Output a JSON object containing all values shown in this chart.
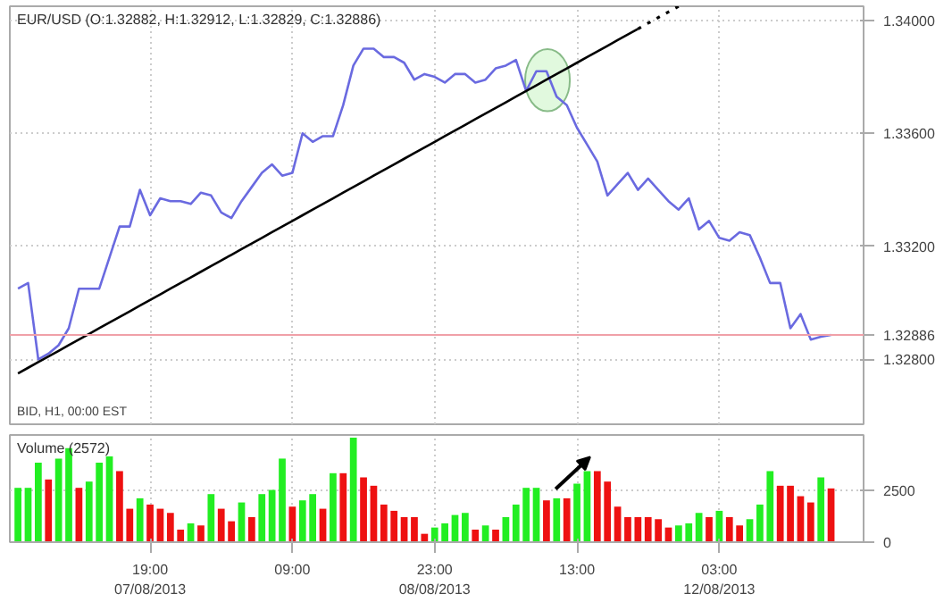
{
  "chart_data": [
    {
      "type": "line",
      "title": "EUR/USD (O:1.32882, H:1.32912, L:1.32829, C:1.32886)",
      "annotations": [
        "BID, H1, 00:00 EST"
      ],
      "categories": [
        null,
        null,
        null,
        null,
        null,
        null,
        null,
        null,
        null,
        null,
        null,
        null,
        null,
        null,
        null,
        null,
        null,
        null,
        null,
        null,
        null,
        null,
        null,
        null,
        null,
        null,
        null,
        null,
        null,
        null,
        null,
        null,
        null,
        null,
        null,
        null,
        null,
        null,
        null,
        null,
        null,
        null,
        null,
        null,
        null,
        null,
        null,
        null,
        null,
        null,
        null,
        null,
        null,
        null,
        null,
        null,
        null,
        null,
        null,
        null,
        null,
        null,
        null,
        null,
        null,
        null,
        null,
        null,
        null,
        null,
        null,
        null,
        null,
        null,
        null,
        null,
        null,
        null,
        null,
        null,
        null
      ],
      "series": [
        {
          "color": "#6a6ae0",
          "values": [
            1.3305,
            1.3307,
            1.328,
            1.3282,
            1.3285,
            1.3291,
            1.3305,
            1.3305,
            1.3305,
            1.3316,
            1.3327,
            1.3327,
            1.334,
            1.3331,
            1.3337,
            1.3336,
            1.3336,
            1.3335,
            1.3339,
            1.3338,
            1.3332,
            1.333,
            1.3336,
            1.3341,
            1.3346,
            1.3349,
            1.3345,
            1.3346,
            1.336,
            1.3357,
            1.3359,
            1.3359,
            1.337,
            1.3384,
            1.339,
            1.339,
            1.3387,
            1.3387,
            1.3385,
            1.3379,
            1.3381,
            1.338,
            1.3378,
            1.3381,
            1.3381,
            1.3378,
            1.3379,
            1.3383,
            1.3384,
            1.3386,
            1.3375,
            1.3382,
            1.3382,
            1.3373,
            1.337,
            1.3362,
            1.3356,
            1.335,
            1.3338,
            1.3342,
            1.3346,
            1.334,
            1.3344,
            1.334,
            1.3336,
            1.3333,
            1.3337,
            1.3326,
            1.3329,
            1.3323,
            1.3322,
            1.3325,
            1.3324,
            1.3316,
            1.3307,
            1.3307,
            1.3291,
            1.3296,
            1.3287,
            1.3288,
            1.32886
          ]
        },
        {
          "type": "line",
          "color": "#000000",
          "values": [
            1.3275,
            1.3277,
            1.3279,
            1.3281,
            1.3283,
            1.3285,
            1.3287,
            1.3289,
            1.3291,
            1.3293,
            1.3295,
            1.3297,
            1.3299,
            1.3301,
            1.3303,
            1.3305,
            1.3307,
            1.3309,
            1.3311,
            1.3313,
            1.3315,
            1.3317,
            1.3319,
            1.3321,
            1.3323,
            1.3325,
            1.3327,
            1.3329,
            1.3331,
            1.3333,
            1.3335,
            1.3337,
            1.3339,
            1.3341,
            1.3343,
            1.3345,
            1.3347,
            1.3349,
            1.3351,
            1.3353,
            1.3355,
            1.3357,
            1.3359,
            1.3361,
            1.3363,
            1.3365,
            1.3367,
            1.3369,
            1.3371,
            1.3373,
            1.3375,
            1.3377,
            1.3379,
            1.3381,
            1.3383,
            1.3385,
            1.3387,
            1.3389,
            1.3391,
            1.3393,
            1.3395,
            1.3397,
            null,
            null,
            null,
            null,
            null,
            null,
            null,
            null,
            null,
            null,
            null,
            null,
            null,
            null,
            null,
            null,
            null,
            null,
            null
          ]
        },
        {
          "type": "line",
          "color": "#000000",
          "line_style": "dotted",
          "values": [
            null,
            null,
            null,
            null,
            null,
            null,
            null,
            null,
            null,
            null,
            null,
            null,
            null,
            null,
            null,
            null,
            null,
            null,
            null,
            null,
            null,
            null,
            null,
            null,
            null,
            null,
            null,
            null,
            null,
            null,
            null,
            null,
            null,
            null,
            null,
            null,
            null,
            null,
            null,
            null,
            null,
            null,
            null,
            null,
            null,
            null,
            null,
            null,
            null,
            null,
            null,
            null,
            null,
            null,
            null,
            null,
            null,
            null,
            null,
            null,
            null,
            1.3397,
            1.3399,
            1.3401,
            1.3403,
            1.3405,
            null,
            null,
            null,
            null,
            null,
            null,
            null,
            null,
            null,
            null,
            null,
            null,
            null,
            null,
            null
          ]
        }
      ],
      "ylim": [
        1.3257,
        1.3405
      ],
      "yticks": [
        {
          "value": 1.328,
          "label": "1.32800"
        },
        {
          "value": 1.332,
          "label": "1.33200"
        },
        {
          "value": 1.336,
          "label": "1.33600"
        },
        {
          "value": 1.34,
          "label": "1.34000"
        }
      ],
      "ref_lines": [
        {
          "axis": "y",
          "value": 1.32886,
          "label": "1.32886",
          "color": "#f0a0a8"
        }
      ],
      "grid": true,
      "tick_labels": "y"
    },
    {
      "type": "bar",
      "title": "Volume (2572)",
      "categories": [
        null,
        null,
        null,
        null,
        null,
        null,
        null,
        null,
        null,
        null,
        null,
        null,
        null,
        "19:00\n07/08/2013",
        null,
        null,
        null,
        null,
        null,
        null,
        null,
        null,
        null,
        null,
        null,
        null,
        null,
        "09:00",
        null,
        null,
        null,
        null,
        null,
        null,
        null,
        null,
        null,
        null,
        null,
        null,
        null,
        "23:00\n08/08/2013",
        null,
        null,
        null,
        null,
        null,
        null,
        null,
        null,
        null,
        null,
        null,
        null,
        null,
        "13:00",
        null,
        null,
        null,
        null,
        null,
        null,
        null,
        null,
        null,
        null,
        null,
        null,
        null,
        "03:00\n12/08/2013",
        null,
        null,
        null,
        null,
        null,
        null,
        null,
        null,
        null,
        null,
        null
      ],
      "values": [
        2600,
        2600,
        3800,
        3000,
        4000,
        4500,
        2600,
        2900,
        3800,
        4100,
        3400,
        1600,
        2100,
        1800,
        1600,
        1400,
        600,
        900,
        800,
        2300,
        1600,
        1000,
        1900,
        1200,
        2300,
        2500,
        4000,
        1700,
        2000,
        2300,
        1600,
        3300,
        3300,
        5000,
        3100,
        2700,
        1800,
        1500,
        1200,
        1200,
        400,
        700,
        900,
        1300,
        1400,
        600,
        800,
        600,
        1200,
        1800,
        2600,
        2600,
        2000,
        2100,
        2100,
        2800,
        3400,
        3400,
        2900,
        1700,
        1200,
        1200,
        1200,
        1100,
        700,
        800,
        900,
        1400,
        1200,
        1500,
        1200,
        800,
        1100,
        1800,
        3400,
        2700,
        2700,
        2200,
        1900,
        3100,
        2572
      ],
      "colors": [
        "#22ee22",
        "#22ee22",
        "#22ee22",
        "#ee1111",
        "#22ee22",
        "#22ee22",
        "#ee1111",
        "#22ee22",
        "#22ee22",
        "#22ee22",
        "#ee1111",
        "#ee1111",
        "#22ee22",
        "#ee1111",
        "#ee1111",
        "#ee1111",
        "#ee1111",
        "#22ee22",
        "#ee1111",
        "#22ee22",
        "#ee1111",
        "#ee1111",
        "#22ee22",
        "#ee1111",
        "#22ee22",
        "#22ee22",
        "#22ee22",
        "#ee1111",
        "#22ee22",
        "#22ee22",
        "#ee1111",
        "#22ee22",
        "#ee1111",
        "#22ee22",
        "#ee1111",
        "#ee1111",
        "#ee1111",
        "#ee1111",
        "#ee1111",
        "#ee1111",
        "#ee1111",
        "#22ee22",
        "#22ee22",
        "#22ee22",
        "#22ee22",
        "#ee1111",
        "#22ee22",
        "#ee1111",
        "#22ee22",
        "#22ee22",
        "#22ee22",
        "#22ee22",
        "#ee1111",
        "#22ee22",
        "#ee1111",
        "#22ee22",
        "#22ee22",
        "#ee1111",
        "#ee1111",
        "#ee1111",
        "#ee1111",
        "#ee1111",
        "#ee1111",
        "#ee1111",
        "#ee1111",
        "#22ee22",
        "#22ee22",
        "#22ee22",
        "#ee1111",
        "#22ee22",
        "#ee1111",
        "#ee1111",
        "#22ee22",
        "#22ee22",
        "#22ee22",
        "#ee1111",
        "#ee1111",
        "#ee1111",
        "#ee1111",
        "#22ee22",
        "#ee1111"
      ],
      "ylim": [
        0,
        5130
      ],
      "yticks": [
        0,
        2500
      ],
      "grid": true
    }
  ]
}
